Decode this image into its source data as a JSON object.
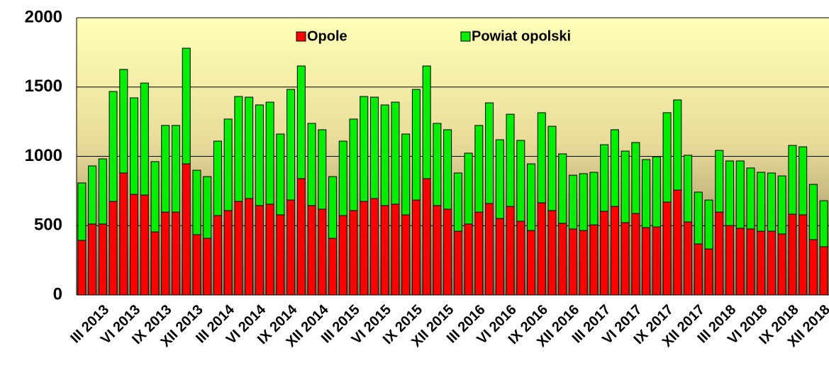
{
  "chart_data": {
    "type": "stacked_bar",
    "categories": [
      null,
      null,
      "III 2013",
      null,
      null,
      "VI 2013",
      null,
      null,
      "IX 2013",
      null,
      null,
      "XII 2013",
      null,
      null,
      "III 2014",
      null,
      null,
      "VI 2014",
      null,
      null,
      "IX 2014",
      null,
      null,
      "XII 2014",
      null,
      null,
      "III 2015",
      null,
      null,
      "VI 2015",
      null,
      null,
      "IX 2015",
      null,
      null,
      "XII 2015",
      null,
      null,
      "III 2016",
      null,
      null,
      "VI 2016",
      null,
      null,
      "IX 2016",
      null,
      null,
      "XII 2016",
      null,
      null,
      "III 2017",
      null,
      null,
      "VI 2017",
      null,
      null,
      "IX 2017",
      null,
      null,
      "XII 2017",
      null,
      null,
      "III 2018",
      null,
      null,
      "VI 2018",
      null,
      null,
      "IX 2018",
      null,
      null,
      "XII 2018"
    ],
    "series": [
      {
        "name": "Opole",
        "color": "#ff0000",
        "values": [
          394,
          512,
          512,
          675,
          880,
          726,
          721,
          455,
          598,
          598,
          946,
          435,
          409,
          573,
          609,
          675,
          696,
          645,
          655,
          578,
          685,
          839,
          645,
          619,
          409,
          573,
          609,
          675,
          696,
          645,
          655,
          578,
          685,
          839,
          645,
          619,
          460,
          512,
          598,
          660,
          552,
          639,
          532,
          465,
          665,
          609,
          517,
          476,
          465,
          506,
          604,
          639,
          522,
          588,
          486,
          491,
          670,
          757,
          527,
          368,
          332,
          598,
          501,
          481,
          476,
          460,
          460,
          440,
          583,
          578,
          399,
          348
        ]
      },
      {
        "name": "Powiat opolski",
        "color": "#00ee00",
        "values": [
          414,
          419,
          470,
          793,
          747,
          696,
          808,
          507,
          625,
          625,
          834,
          465,
          445,
          537,
          660,
          757,
          731,
          726,
          736,
          583,
          798,
          813,
          593,
          573,
          445,
          537,
          660,
          757,
          731,
          726,
          736,
          583,
          798,
          813,
          593,
          573,
          420,
          511,
          625,
          726,
          568,
          665,
          583,
          481,
          650,
          608,
          501,
          388,
          410,
          379,
          480,
          553,
          516,
          512,
          491,
          506,
          645,
          650,
          481,
          374,
          353,
          445,
          466,
          486,
          440,
          425,
          420,
          419,
          496,
          491,
          399,
          332
        ]
      }
    ],
    "ylim": [
      0,
      2000
    ],
    "yticks": [
      0,
      500,
      1000,
      1500,
      2000
    ],
    "grid": true,
    "legend": "top"
  }
}
